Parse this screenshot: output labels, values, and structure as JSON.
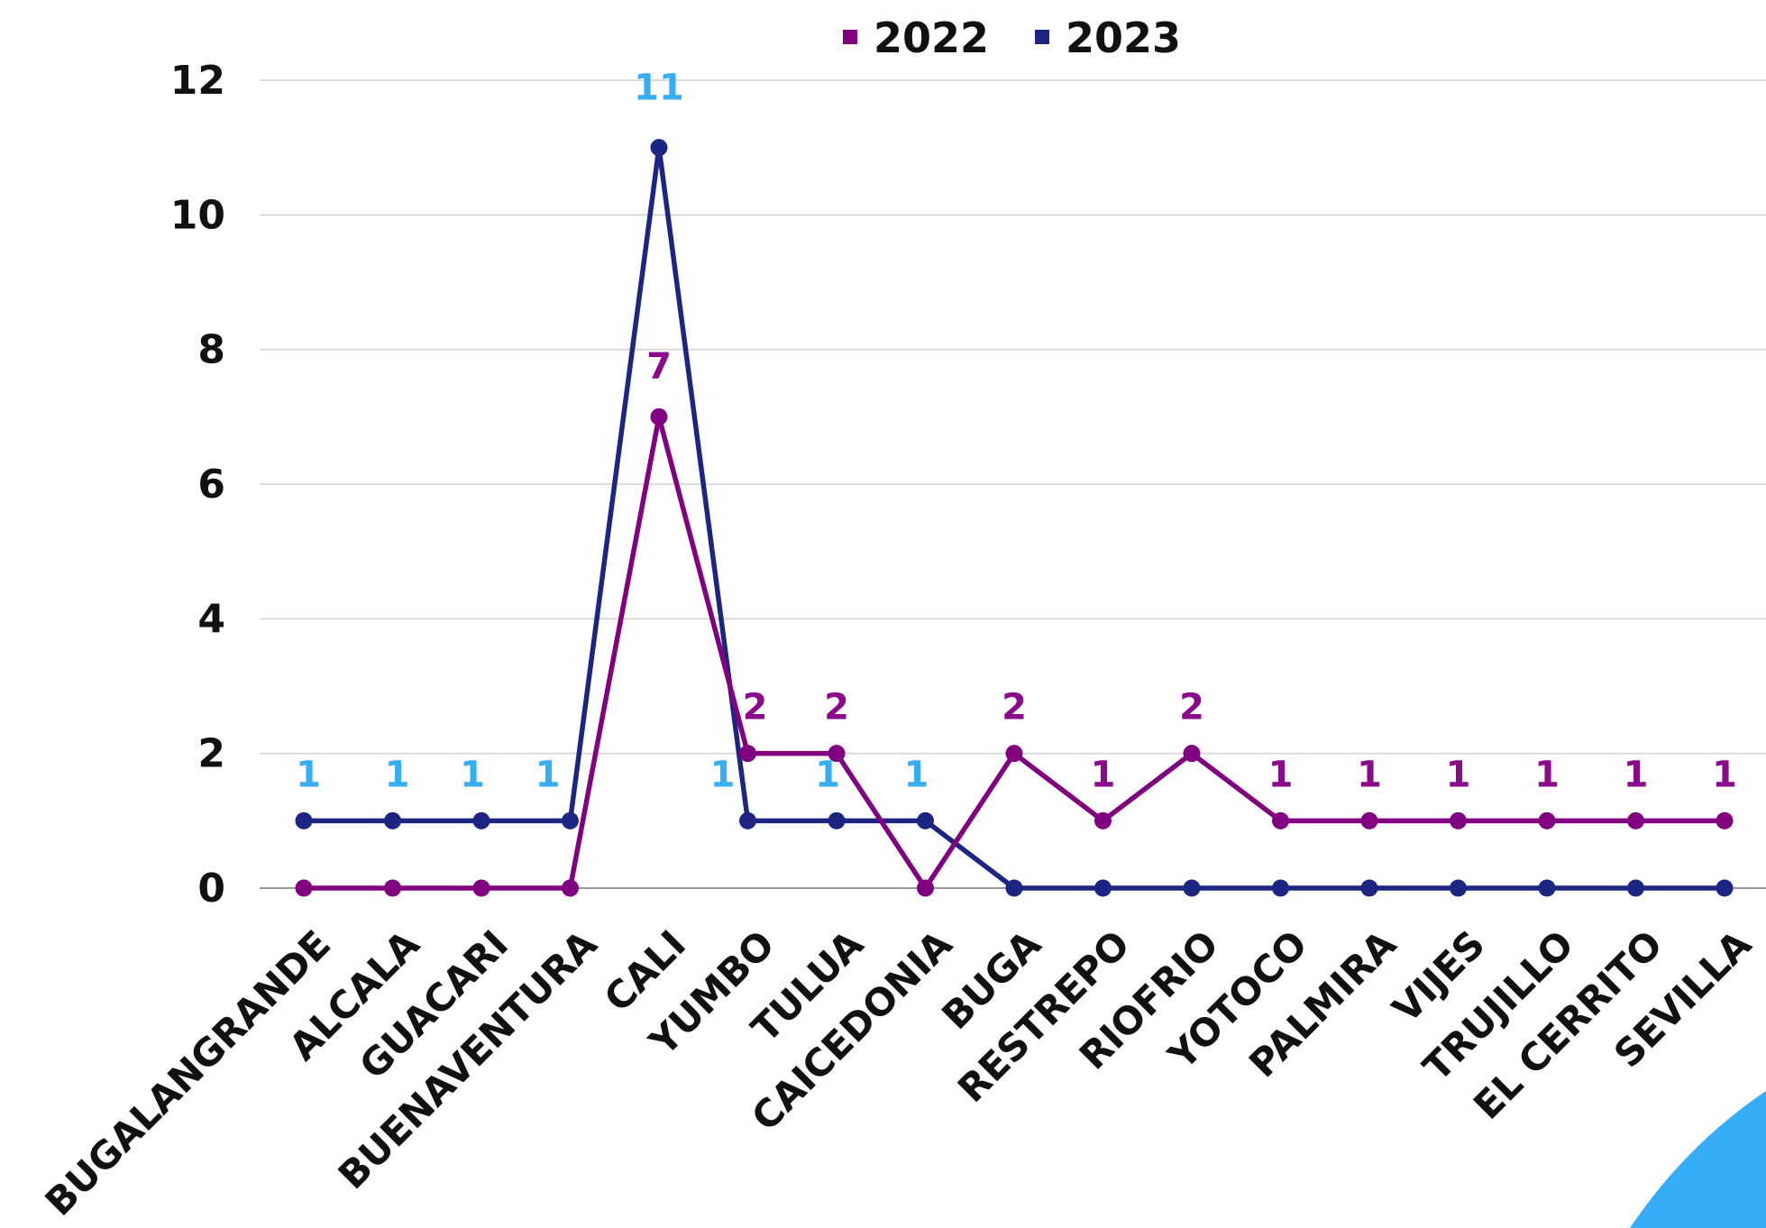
{
  "chart_data": {
    "type": "line",
    "title": "",
    "xlabel": "",
    "ylabel": "",
    "ylim": [
      0,
      12
    ],
    "yticks": [
      0,
      2,
      4,
      6,
      8,
      10,
      12
    ],
    "grid": true,
    "legend_position": "top",
    "categories": [
      "BUGALANGRANDE",
      "ALCALA",
      "GUACARI",
      "BUENAVENTURA",
      "CALI",
      "YUMBO",
      "TULUA",
      "CAICEDONIA",
      "BUGA",
      "RESTREPO",
      "RIOFRIO",
      "YOTOCO",
      "PALMIRA",
      "VIJES",
      "TRUJILLO",
      "EL CERRITO",
      "SEVILLA"
    ],
    "series": [
      {
        "name": "2022",
        "color": "#800080",
        "label_color": "#8b0a8b",
        "values": [
          0,
          0,
          0,
          0,
          7,
          2,
          2,
          0,
          2,
          1,
          2,
          1,
          1,
          1,
          1,
          1,
          1
        ],
        "labeled_points": [
          4,
          5,
          6,
          8,
          9,
          10,
          11,
          12,
          13,
          14,
          15,
          16
        ]
      },
      {
        "name": "2023",
        "color": "#1c2582",
        "label_color": "#35aef6",
        "values": [
          1,
          1,
          1,
          1,
          11,
          1,
          1,
          1,
          0,
          0,
          0,
          0,
          0,
          0,
          0,
          0,
          0
        ],
        "labeled_points": [
          0,
          1,
          2,
          3,
          4,
          5,
          6,
          7
        ]
      }
    ],
    "decoration_color": "#36adf6"
  }
}
